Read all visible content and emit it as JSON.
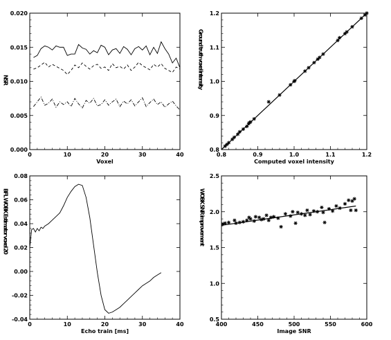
{
  "chart_data": [
    {
      "type": "line",
      "xlabel": "Voxel",
      "ylabel": "NSR",
      "xlim": [
        0,
        40
      ],
      "ylim": [
        0,
        0.02
      ],
      "xticks": [
        "0",
        "10",
        "20",
        "30",
        "40"
      ],
      "yticks": [
        "0.000",
        "0.005",
        "0.010",
        "0.015",
        "0.020"
      ],
      "x": [
        1,
        2,
        3,
        4,
        5,
        6,
        7,
        8,
        9,
        10,
        11,
        12,
        13,
        14,
        15,
        16,
        17,
        18,
        19,
        20,
        21,
        22,
        23,
        24,
        25,
        26,
        27,
        28,
        29,
        30,
        31,
        32,
        33,
        34,
        35,
        36,
        37,
        38,
        39,
        40
      ],
      "series": [
        {
          "style": "solid",
          "values": [
            0.0135,
            0.0138,
            0.0148,
            0.0152,
            0.015,
            0.0146,
            0.0152,
            0.015,
            0.015,
            0.0138,
            0.014,
            0.014,
            0.0154,
            0.0149,
            0.0147,
            0.014,
            0.0145,
            0.0142,
            0.0153,
            0.015,
            0.0139,
            0.0146,
            0.0148,
            0.0141,
            0.0151,
            0.0147,
            0.0139,
            0.0148,
            0.0151,
            0.0146,
            0.0152,
            0.0139,
            0.015,
            0.0141,
            0.0158,
            0.0148,
            0.014,
            0.0127,
            0.0134,
            0.012
          ]
        },
        {
          "style": "dashed",
          "values": [
            0.0118,
            0.012,
            0.0124,
            0.0128,
            0.0121,
            0.0125,
            0.0122,
            0.0119,
            0.0116,
            0.011,
            0.0116,
            0.0124,
            0.012,
            0.0127,
            0.0122,
            0.0118,
            0.0123,
            0.0125,
            0.0119,
            0.0121,
            0.0116,
            0.0126,
            0.012,
            0.0122,
            0.0118,
            0.0124,
            0.0116,
            0.0121,
            0.0128,
            0.0123,
            0.012,
            0.0117,
            0.0125,
            0.0121,
            0.0126,
            0.0119,
            0.0116,
            0.0113,
            0.0121,
            0.0118
          ]
        },
        {
          "style": "dashdot",
          "values": [
            0.0063,
            0.007,
            0.0077,
            0.0065,
            0.0068,
            0.0074,
            0.0062,
            0.007,
            0.0066,
            0.007,
            0.0063,
            0.0075,
            0.0067,
            0.0061,
            0.0072,
            0.0068,
            0.0075,
            0.0064,
            0.0066,
            0.0073,
            0.0065,
            0.007,
            0.0074,
            0.0063,
            0.0071,
            0.0067,
            0.0073,
            0.0064,
            0.007,
            0.0076,
            0.0063,
            0.0069,
            0.0074,
            0.0066,
            0.007,
            0.0062,
            0.0067,
            0.0071,
            0.0064,
            0.0058
          ]
        }
      ]
    },
    {
      "type": "scatter",
      "xlabel": "Computed voxel intensity",
      "ylabel": "Ground truth voxel intensity",
      "xlim": [
        0.8,
        1.2
      ],
      "ylim": [
        0.8,
        1.2
      ],
      "xticks": [
        "0.8",
        "0.9",
        "1.0",
        "1.1",
        "1.2"
      ],
      "yticks": [
        "0.8",
        "0.9",
        "1.0",
        "1.1",
        "1.2"
      ],
      "points": [
        [
          0.81,
          0.81
        ],
        [
          0.815,
          0.815
        ],
        [
          0.82,
          0.82
        ],
        [
          0.83,
          0.83
        ],
        [
          0.835,
          0.836
        ],
        [
          0.845,
          0.845
        ],
        [
          0.85,
          0.852
        ],
        [
          0.86,
          0.86
        ],
        [
          0.87,
          0.868
        ],
        [
          0.875,
          0.876
        ],
        [
          0.877,
          0.879
        ],
        [
          0.88,
          0.881
        ],
        [
          0.89,
          0.89
        ],
        [
          0.93,
          0.94
        ],
        [
          0.96,
          0.96
        ],
        [
          0.99,
          0.99
        ],
        [
          1.0,
          1.0
        ],
        [
          1.002,
          1.002
        ],
        [
          1.03,
          1.03
        ],
        [
          1.04,
          1.04
        ],
        [
          1.055,
          1.055
        ],
        [
          1.065,
          1.065
        ],
        [
          1.07,
          1.07
        ],
        [
          1.08,
          1.08
        ],
        [
          1.12,
          1.12
        ],
        [
          1.125,
          1.128
        ],
        [
          1.14,
          1.14
        ],
        [
          1.145,
          1.145
        ],
        [
          1.16,
          1.16
        ],
        [
          1.185,
          1.185
        ],
        [
          1.195,
          1.195
        ],
        [
          1.2,
          1.2
        ]
      ],
      "fit_line": [
        [
          0.8,
          0.8
        ],
        [
          1.2,
          1.2
        ]
      ]
    },
    {
      "type": "line",
      "xlabel": "Echo train [ms]",
      "ylabel": "BFL WOBK Estimator voxel 20",
      "xlim": [
        0,
        40
      ],
      "ylim": [
        -0.04,
        0.08
      ],
      "xticks": [
        "0",
        "10",
        "20",
        "30",
        "40"
      ],
      "yticks": [
        "-0.04",
        "-0.02",
        "0.00",
        "0.02",
        "0.04",
        "0.06",
        "0.08"
      ],
      "x": [
        0,
        0.5,
        1,
        1.5,
        2,
        2.5,
        3,
        3.5,
        4,
        5,
        6,
        7,
        8,
        9,
        10,
        11,
        12,
        13,
        14,
        15,
        16,
        17,
        18,
        19,
        20,
        21,
        22,
        23,
        24,
        25,
        26,
        27,
        28,
        29,
        30,
        31,
        32,
        33,
        34,
        35
      ],
      "series": [
        {
          "style": "solid",
          "values": [
            0.02,
            0.035,
            0.036,
            0.033,
            0.036,
            0.034,
            0.037,
            0.036,
            0.038,
            0.04,
            0.043,
            0.046,
            0.049,
            0.055,
            0.062,
            0.067,
            0.071,
            0.073,
            0.072,
            0.062,
            0.045,
            0.022,
            -0.001,
            -0.02,
            -0.032,
            -0.035,
            -0.034,
            -0.032,
            -0.03,
            -0.027,
            -0.024,
            -0.021,
            -0.018,
            -0.015,
            -0.012,
            -0.01,
            -0.008,
            -0.005,
            -0.003,
            -0.001
          ]
        }
      ]
    },
    {
      "type": "scatter",
      "xlabel": "Image SNR",
      "ylabel": "WOBK SNR improvement",
      "xlim": [
        400,
        600
      ],
      "ylim": [
        0.5,
        2.5
      ],
      "xticks": [
        "400",
        "450",
        "500",
        "550",
        "600"
      ],
      "yticks": [
        "0.5",
        "1.0",
        "1.5",
        "2.0",
        "2.5"
      ],
      "points": [
        [
          402,
          1.83
        ],
        [
          405,
          1.84
        ],
        [
          410,
          1.85
        ],
        [
          418,
          1.88
        ],
        [
          420,
          1.84
        ],
        [
          425,
          1.85
        ],
        [
          430,
          1.86
        ],
        [
          435,
          1.88
        ],
        [
          438,
          1.92
        ],
        [
          440,
          1.9
        ],
        [
          445,
          1.87
        ],
        [
          447,
          1.93
        ],
        [
          452,
          1.92
        ],
        [
          455,
          1.89
        ],
        [
          458,
          1.9
        ],
        [
          462,
          1.95
        ],
        [
          465,
          1.88
        ],
        [
          468,
          1.92
        ],
        [
          472,
          1.93
        ],
        [
          478,
          1.91
        ],
        [
          482,
          1.79
        ],
        [
          488,
          1.97
        ],
        [
          495,
          1.94
        ],
        [
          498,
          2.0
        ],
        [
          502,
          1.84
        ],
        [
          505,
          1.99
        ],
        [
          510,
          1.97
        ],
        [
          515,
          1.95
        ],
        [
          518,
          2.02
        ],
        [
          522,
          1.96
        ],
        [
          527,
          2.01
        ],
        [
          532,
          2.0
        ],
        [
          538,
          2.06
        ],
        [
          540,
          1.99
        ],
        [
          542,
          1.85
        ],
        [
          548,
          2.04
        ],
        [
          553,
          2.01
        ],
        [
          558,
          2.08
        ],
        [
          563,
          2.05
        ],
        [
          570,
          2.11
        ],
        [
          575,
          2.16
        ],
        [
          578,
          2.02
        ],
        [
          580,
          2.15
        ],
        [
          583,
          2.18
        ],
        [
          585,
          2.02
        ]
      ],
      "fit_line": [
        [
          400,
          1.81
        ],
        [
          585,
          2.08
        ]
      ]
    }
  ]
}
